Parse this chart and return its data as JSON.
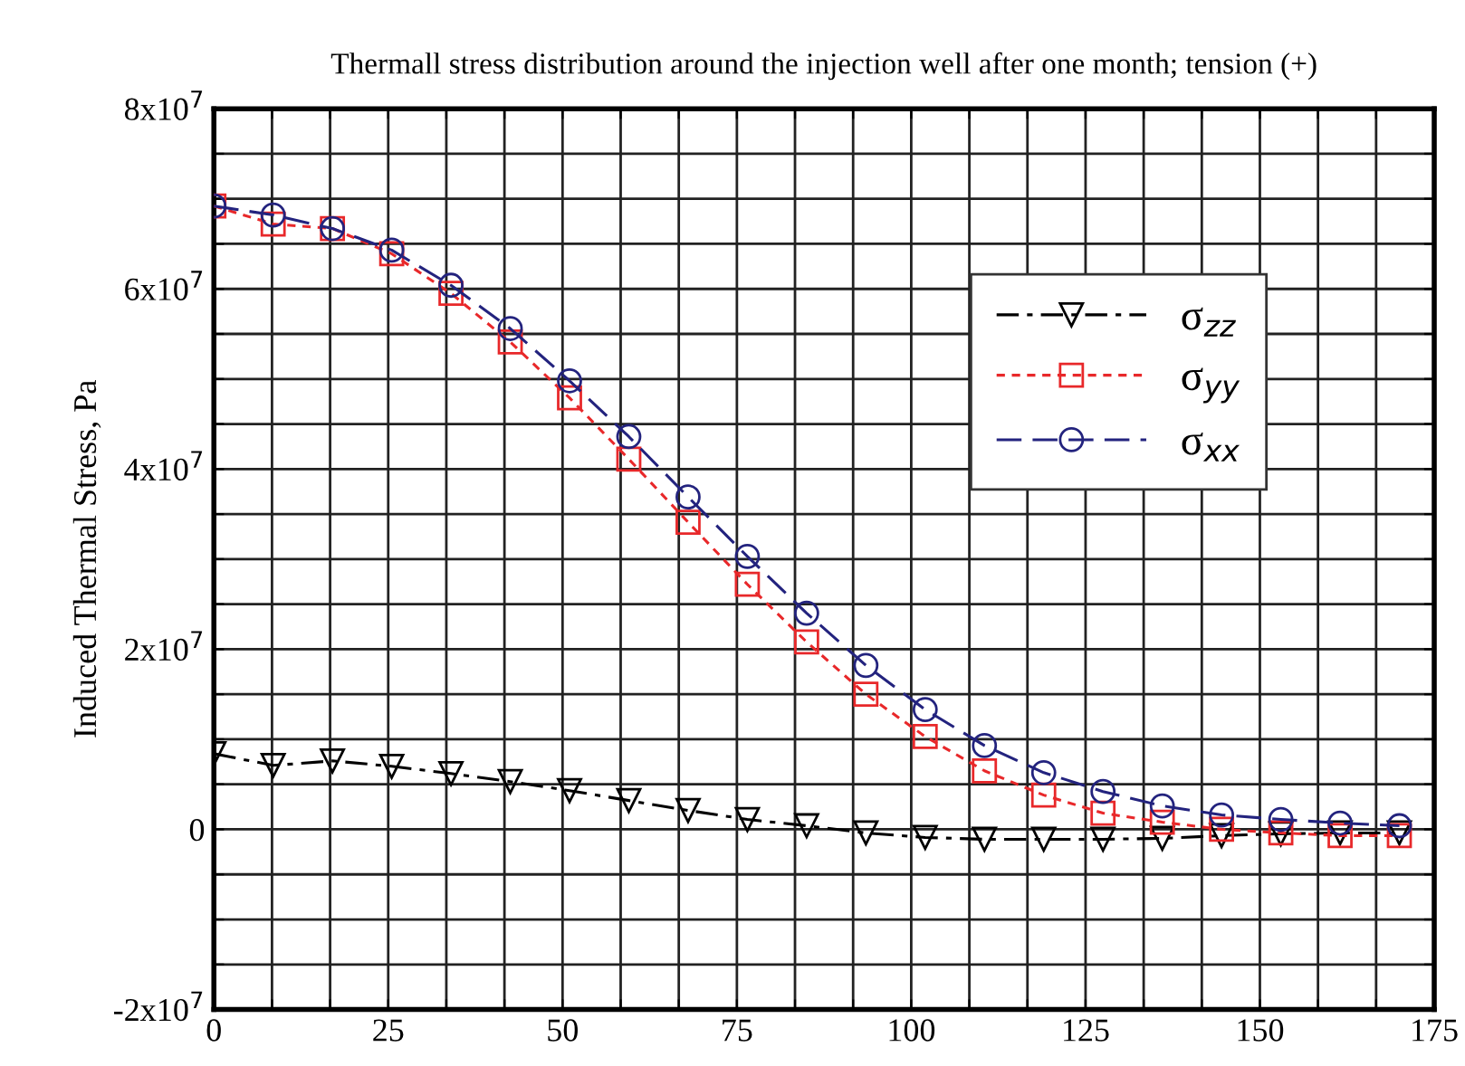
{
  "chart_data": {
    "type": "line",
    "title": "Thermall stress distribution around the injection well after one month; tension (+)",
    "ylabel": "Induced Thermal Stress, Pa",
    "x": [
      0,
      8.5,
      17,
      25.5,
      34,
      42.5,
      51,
      59.5,
      68,
      76.5,
      85,
      93.5,
      102,
      110.5,
      119,
      127.5,
      136,
      144.5,
      153,
      161.5,
      170
    ],
    "series": [
      {
        "name": "σ$_{zz}$",
        "color": "#000000",
        "marker": "triangle",
        "line_style": "dashdot",
        "values": [
          8400000,
          7100000,
          7600000,
          7000000,
          6200000,
          5300000,
          4300000,
          3200000,
          2100000,
          1100000,
          400000,
          -400000,
          -900000,
          -1100000,
          -1100000,
          -1100000,
          -1000000,
          -700000,
          -500000,
          -400000,
          -400000
        ]
      },
      {
        "name": "σ$_{yy}$",
        "color": "#e8282a",
        "marker": "square",
        "line_style": "dotted",
        "values": [
          69200000,
          67200000,
          66700000,
          63900000,
          59500000,
          54100000,
          47900000,
          41100000,
          34100000,
          27200000,
          20800000,
          15000000,
          10300000,
          6500000,
          3800000,
          1800000,
          800000,
          0,
          -400000,
          -700000,
          -700000
        ]
      },
      {
        "name": "σ$_{xx}$",
        "color": "#23237e",
        "marker": "circle",
        "line_style": "dashed",
        "values": [
          69200000,
          68200000,
          66700000,
          64300000,
          60400000,
          55600000,
          49800000,
          43600000,
          36900000,
          30300000,
          24000000,
          18200000,
          13300000,
          9300000,
          6300000,
          4200000,
          2600000,
          1600000,
          1100000,
          700000,
          400000
        ]
      }
    ],
    "xlim": [
      0,
      175
    ],
    "xticks": [
      0,
      {
        "value": 8.333,
        "label": null
      },
      {
        "value": 16.667,
        "label": null
      },
      25,
      {
        "value": 33.333,
        "label": null
      },
      {
        "value": 41.667,
        "label": null
      },
      50,
      {
        "value": 58.333,
        "label": null
      },
      {
        "value": 66.667,
        "label": null
      },
      75,
      {
        "value": 83.333,
        "label": null
      },
      {
        "value": 91.667,
        "label": null
      },
      100,
      {
        "value": 108.333,
        "label": null
      },
      {
        "value": 116.667,
        "label": null
      },
      125,
      {
        "value": 133.333,
        "label": null
      },
      {
        "value": 141.667,
        "label": null
      },
      150,
      {
        "value": 158.333,
        "label": null
      },
      {
        "value": 166.667,
        "label": null
      },
      175
    ],
    "ylim": [
      -20000000,
      80000000
    ],
    "yticks": [
      {
        "value": -20000000,
        "label": "-2x10$^{7}$"
      },
      {
        "value": -15000000,
        "label": null
      },
      {
        "value": -10000000,
        "label": null
      },
      {
        "value": -5000000,
        "label": null
      },
      0,
      {
        "value": 5000000,
        "label": null
      },
      {
        "value": 10000000,
        "label": null
      },
      {
        "value": 15000000,
        "label": null
      },
      {
        "value": 20000000,
        "label": "2x10$^{7}$"
      },
      {
        "value": 25000000,
        "label": null
      },
      {
        "value": 30000000,
        "label": null
      },
      {
        "value": 35000000,
        "label": null
      },
      {
        "value": 40000000,
        "label": "4x10$^{7}$"
      },
      {
        "value": 45000000,
        "label": null
      },
      {
        "value": 50000000,
        "label": null
      },
      {
        "value": 55000000,
        "label": null
      },
      {
        "value": 60000000,
        "label": "6x10$^{7}$"
      },
      {
        "value": 65000000,
        "label": null
      },
      {
        "value": 70000000,
        "label": null
      },
      {
        "value": 75000000,
        "label": null
      },
      {
        "value": 80000000,
        "label": "8x10$^{7}$"
      }
    ],
    "grid": true,
    "legend": "top right"
  }
}
